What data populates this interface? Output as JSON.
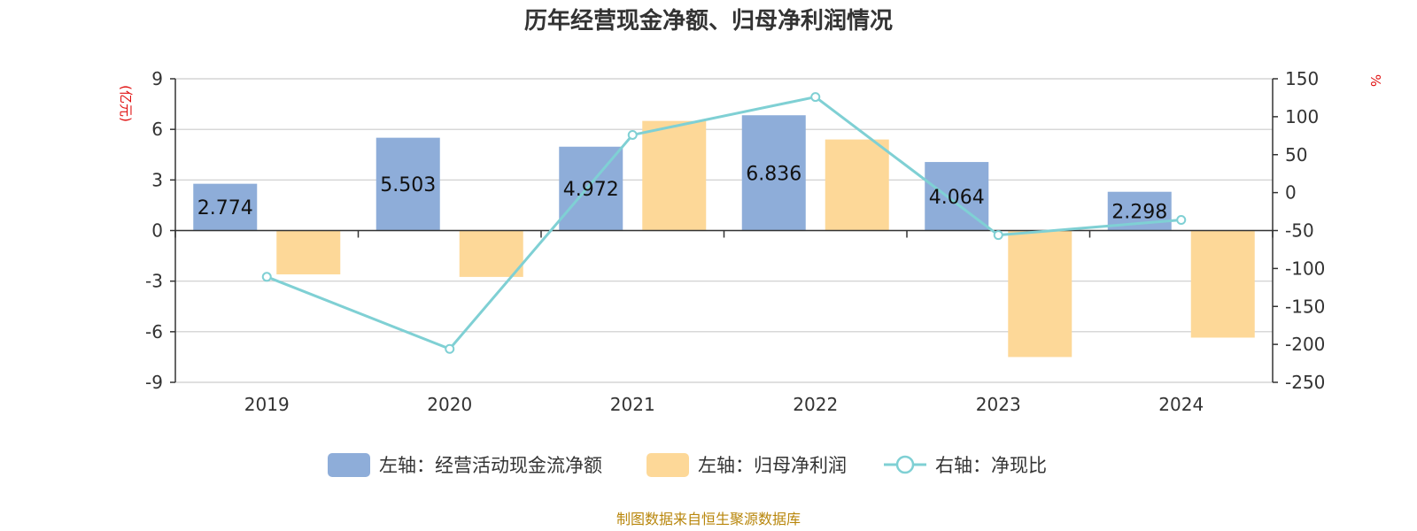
{
  "chart_data": {
    "type": "bar",
    "title": "历年经营现金净额、归母净利润情况",
    "categories": [
      "2019",
      "2020",
      "2021",
      "2022",
      "2023",
      "2024"
    ],
    "left_axis": {
      "unit": "(亿元)",
      "range": [
        -9,
        9
      ],
      "ticks": [
        9,
        6,
        3,
        0,
        -3,
        -6,
        -9
      ]
    },
    "right_axis": {
      "unit": "%",
      "range": [
        -250,
        150
      ],
      "ticks": [
        150,
        100,
        50,
        0,
        -50,
        -100,
        -150,
        -200,
        -250
      ]
    },
    "series": [
      {
        "name": "左轴：经营活动现金流净额",
        "type": "bar",
        "axis": "left",
        "color": "#8eadd9",
        "values": [
          2.774,
          5.503,
          4.972,
          6.836,
          4.064,
          2.298
        ],
        "labels": [
          "2.774",
          "5.503",
          "4.972",
          "6.836",
          "4.064",
          "2.298"
        ]
      },
      {
        "name": "左轴：归母净利润",
        "type": "bar",
        "axis": "left",
        "color": "#fdd898",
        "values": [
          -2.6,
          -2.75,
          6.5,
          5.4,
          -7.5,
          -6.35
        ]
      },
      {
        "name": "右轴：净现比",
        "type": "line",
        "axis": "right",
        "color": "#7fd0d4",
        "values": [
          -111,
          -206,
          76,
          126,
          -56,
          -36
        ]
      }
    ],
    "grid": true,
    "legend_position": "bottom"
  },
  "source_note": "制图数据来自恒生聚源数据库"
}
